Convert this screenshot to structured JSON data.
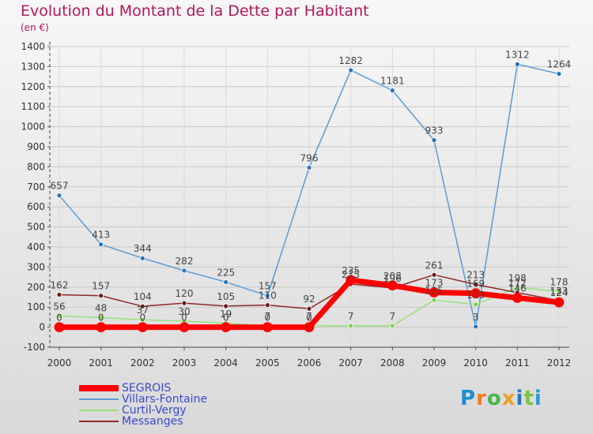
{
  "title": "Evolution du Montant de la Dette par Habitant",
  "unit": "(en €)",
  "logo": {
    "text": "Proxiti",
    "colors": [
      "#1b8fd0",
      "#f07c1a",
      "#48b54a",
      "#e3a321",
      "#2a72c8",
      "#7fc241",
      "#2a9ad8"
    ]
  },
  "chart_data": {
    "type": "line",
    "x": [
      2000,
      2001,
      2002,
      2003,
      2004,
      2005,
      2006,
      2007,
      2008,
      2009,
      2010,
      2011,
      2012
    ],
    "ylim": [
      -100,
      1400
    ],
    "yticks": [
      -100,
      0,
      100,
      200,
      300,
      400,
      500,
      600,
      700,
      800,
      900,
      1000,
      1100,
      1200,
      1300,
      1400
    ],
    "series": [
      {
        "name": "SEGROIS",
        "color": "#ff0000",
        "marker_color": "#ff0000",
        "width": 7,
        "values": [
          0,
          0,
          0,
          0,
          0,
          0,
          0,
          235,
          208,
          173,
          169,
          146,
          124
        ],
        "labels": [
          "0",
          "0",
          "0",
          "0",
          "0",
          "0",
          "0",
          "235",
          "208",
          "173",
          "169",
          "146",
          "124"
        ]
      },
      {
        "name": "Villars-Fontaine",
        "color": "#5b9bd5",
        "marker_color": "#2a72b5",
        "width": 1.5,
        "values": [
          657,
          413,
          344,
          282,
          225,
          157,
          796,
          1282,
          1181,
          933,
          3,
          1312,
          1264
        ],
        "labels": [
          "657",
          "413",
          "344",
          "282",
          "225",
          "157",
          "796",
          "1282",
          "1181",
          "933",
          "3",
          "1312",
          "1264"
        ]
      },
      {
        "name": "Curtil-Vergy",
        "color": "#99e07a",
        "marker_color": "#7ccf4a",
        "width": 1.5,
        "values": [
          56,
          48,
          37,
          30,
          19,
          7,
          7,
          7,
          7,
          135,
          113,
          198,
          178
        ],
        "labels": [
          "56",
          "48",
          "37",
          "30",
          "19",
          "7",
          "7",
          "7",
          "7",
          "135",
          "113",
          "198",
          "178"
        ]
      },
      {
        "name": "Messanges",
        "color": "#8b2a2a",
        "marker_color": "#6a1a1a",
        "width": 1.5,
        "values": [
          162,
          157,
          104,
          120,
          105,
          110,
          92,
          215,
          196,
          261,
          213,
          172,
          133
        ],
        "labels": [
          "162",
          "157",
          "104",
          "120",
          "105",
          "110",
          "92",
          "215",
          "196",
          "261",
          "213",
          "172",
          "133"
        ]
      }
    ]
  }
}
